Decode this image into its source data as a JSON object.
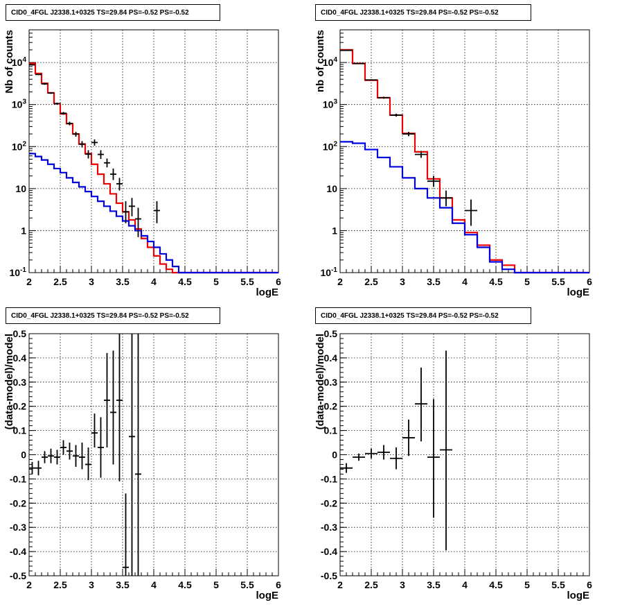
{
  "panels": [
    {
      "title": "CID0_4FGL J2338.1+0325 TS=29.84 PS=-0.52 PS=-0.52"
    },
    {
      "title": "CID0_4FGL J2338.1+0325 TS=29.84 PS=-0.52 PS=-0.52"
    },
    {
      "title": "CID0_4FGL J2338.1+0325 TS=29.84 PS=-0.52 PS=-0.52"
    },
    {
      "title": "CID0_4FGL J2338.1+0325 TS=29.84 PS=-0.52 PS=-0.52"
    }
  ],
  "colors": {
    "total_model": "#ee0000",
    "background_model": "#0000dd",
    "data": "#000000"
  },
  "chart_data": [
    {
      "type": "line",
      "title": "CID0_4FGL J2338.1+0325 TS=29.84 PS=-0.52 PS=-0.52",
      "xlabel": "logE",
      "ylabel": "Nb of counts",
      "xlim": [
        2,
        6
      ],
      "ylim": [
        0.1,
        60000
      ],
      "yscale": "log",
      "grid": true,
      "x_ticks": [
        "2",
        "2.5",
        "3",
        "3.5",
        "4",
        "4.5",
        "5",
        "5.5",
        "6"
      ],
      "y_ticks": [
        "10^-1",
        "1",
        "10",
        "10^2",
        "10^3",
        "10^4"
      ],
      "bin_edges": [
        2.0,
        2.1,
        2.2,
        2.3,
        2.4,
        2.5,
        2.6,
        2.7,
        2.8,
        2.9,
        3.0,
        3.1,
        3.2,
        3.3,
        3.4,
        3.5,
        3.6,
        3.7,
        3.8,
        3.9,
        4.0,
        4.1,
        4.2,
        4.3,
        4.4,
        4.5,
        4.6,
        4.7,
        4.8,
        4.9,
        5.0,
        5.1,
        5.2,
        5.3,
        5.4,
        5.5,
        5.6,
        5.7,
        5.8,
        5.9,
        6.0
      ],
      "series": [
        {
          "role": "total_model",
          "values": [
            9500,
            5500,
            3200,
            1900,
            1050,
            600,
            350,
            200,
            115,
            68,
            38,
            22,
            13,
            7.5,
            4.5,
            2.8,
            1.8,
            1.1,
            0.65,
            0.4,
            0.25,
            0.16,
            0.12,
            0.1,
            0.1,
            0.1,
            0.1,
            0.1,
            0.1,
            0.1,
            0.1,
            0.1,
            0.1,
            0.1,
            0.1,
            0.1,
            0.1,
            0.1,
            0.1,
            0.1
          ]
        },
        {
          "role": "background_model",
          "values": [
            68,
            58,
            48,
            38,
            30,
            24,
            18,
            14,
            11,
            8.5,
            6.5,
            5,
            3.8,
            2.9,
            2.2,
            1.7,
            1.3,
            1.0,
            0.75,
            0.55,
            0.4,
            0.28,
            0.2,
            0.14,
            0.1,
            0.1,
            0.1,
            0.1,
            0.1,
            0.1,
            0.1,
            0.1,
            0.1,
            0.1,
            0.1,
            0.1,
            0.1,
            0.1,
            0.1,
            0.1
          ]
        },
        {
          "role": "data",
          "points": [
            {
              "x": 2.05,
              "y": 8800,
              "ylo": 8500,
              "yhi": 9100
            },
            {
              "x": 2.15,
              "y": 5200,
              "ylo": 5000,
              "yhi": 5400
            },
            {
              "x": 2.25,
              "y": 3100,
              "ylo": 2950,
              "yhi": 3250
            },
            {
              "x": 2.35,
              "y": 1880,
              "ylo": 1790,
              "yhi": 1970
            },
            {
              "x": 2.45,
              "y": 1050,
              "ylo": 990,
              "yhi": 1110
            },
            {
              "x": 2.55,
              "y": 620,
              "ylo": 575,
              "yhi": 665
            },
            {
              "x": 2.65,
              "y": 355,
              "ylo": 320,
              "yhi": 390
            },
            {
              "x": 2.75,
              "y": 198,
              "ylo": 172,
              "yhi": 224
            },
            {
              "x": 2.85,
              "y": 114,
              "ylo": 95,
              "yhi": 135
            },
            {
              "x": 2.95,
              "y": 66,
              "ylo": 52,
              "yhi": 82
            },
            {
              "x": 3.05,
              "y": 125,
              "ylo": 105,
              "yhi": 148
            },
            {
              "x": 3.15,
              "y": 65,
              "ylo": 51,
              "yhi": 82
            },
            {
              "x": 3.25,
              "y": 41,
              "ylo": 32,
              "yhi": 52
            },
            {
              "x": 3.35,
              "y": 22,
              "ylo": 16,
              "yhi": 30
            },
            {
              "x": 3.45,
              "y": 13,
              "ylo": 9,
              "yhi": 18
            },
            {
              "x": 3.55,
              "y": 2.8,
              "ylo": 1.5,
              "yhi": 5
            },
            {
              "x": 3.65,
              "y": 3.8,
              "ylo": 2.2,
              "yhi": 6
            },
            {
              "x": 3.75,
              "y": 1.9,
              "ylo": 0.7,
              "yhi": 3.5
            },
            {
              "x": 4.05,
              "y": 3.0,
              "ylo": 1.5,
              "yhi": 5
            }
          ]
        }
      ]
    },
    {
      "type": "line",
      "title": "CID0_4FGL J2338.1+0325 TS=29.84 PS=-0.52 PS=-0.52",
      "xlabel": "logE",
      "ylabel": "nb of counts",
      "xlim": [
        2,
        6
      ],
      "ylim": [
        0.1,
        60000
      ],
      "yscale": "log",
      "grid": true,
      "x_ticks": [
        "2",
        "2.5",
        "3",
        "3.5",
        "4",
        "4.5",
        "5",
        "5.5",
        "6"
      ],
      "y_ticks": [
        "10^-1",
        "1",
        "10",
        "10^2",
        "10^3",
        "10^4"
      ],
      "bin_edges": [
        2.0,
        2.2,
        2.4,
        2.6,
        2.8,
        3.0,
        3.2,
        3.4,
        3.6,
        3.8,
        4.0,
        4.2,
        4.4,
        4.6,
        4.8,
        5.0,
        5.2,
        5.4,
        5.6,
        5.8,
        6.0
      ],
      "series": [
        {
          "role": "total_model",
          "values": [
            20000,
            9500,
            3800,
            1450,
            560,
            205,
            75,
            17,
            6,
            1.8,
            0.9,
            0.45,
            0.2,
            0.15,
            0.1,
            0.1,
            0.1,
            0.1,
            0.1,
            0.1
          ]
        },
        {
          "role": "background_model",
          "values": [
            130,
            120,
            85,
            55,
            33,
            18,
            10,
            6,
            3.5,
            1.5,
            0.8,
            0.4,
            0.18,
            0.12,
            0.1,
            0.1,
            0.1,
            0.1,
            0.1,
            0.1
          ]
        },
        {
          "role": "data",
          "points": [
            {
              "x": 2.1,
              "y": 19500,
              "ylo": 19100,
              "yhi": 19900
            },
            {
              "x": 2.3,
              "y": 9450,
              "ylo": 9200,
              "yhi": 9700
            },
            {
              "x": 2.5,
              "y": 3850,
              "ylo": 3700,
              "yhi": 4000
            },
            {
              "x": 2.7,
              "y": 1460,
              "ylo": 1380,
              "yhi": 1540
            },
            {
              "x": 2.9,
              "y": 560,
              "ylo": 515,
              "yhi": 605
            },
            {
              "x": 3.1,
              "y": 200,
              "ylo": 176,
              "yhi": 224
            },
            {
              "x": 3.3,
              "y": 65,
              "ylo": 54,
              "yhi": 78
            },
            {
              "x": 3.5,
              "y": 15,
              "ylo": 11,
              "yhi": 20
            },
            {
              "x": 3.7,
              "y": 6,
              "ylo": 3.8,
              "yhi": 9
            },
            {
              "x": 4.1,
              "y": 3,
              "ylo": 1.3,
              "yhi": 5.5
            }
          ]
        }
      ]
    },
    {
      "type": "scatter",
      "title": "CID0_4FGL J2338.1+0325 TS=29.84 PS=-0.52 PS=-0.52",
      "xlabel": "logE",
      "ylabel": "(data-model)/model",
      "xlim": [
        2,
        6
      ],
      "ylim": [
        -0.5,
        0.5
      ],
      "grid": true,
      "x_ticks": [
        "2",
        "2.5",
        "3",
        "3.5",
        "4",
        "4.5",
        "5",
        "5.5",
        "6"
      ],
      "y_ticks": [
        "-0.5",
        "-0.4",
        "-0.3",
        "-0.2",
        "-0.1",
        "0",
        "0.1",
        "0.2",
        "0.3",
        "0.4",
        "0.5"
      ],
      "points": [
        {
          "x": 2.05,
          "y": -0.055,
          "ylo": -0.08,
          "yhi": -0.03,
          "xerr": 0.05
        },
        {
          "x": 2.15,
          "y": -0.055,
          "ylo": -0.085,
          "yhi": -0.025,
          "xerr": 0.05
        },
        {
          "x": 2.25,
          "y": -0.01,
          "ylo": -0.035,
          "yhi": 0.015,
          "xerr": 0.05
        },
        {
          "x": 2.35,
          "y": -0.005,
          "ylo": -0.035,
          "yhi": 0.025,
          "xerr": 0.05
        },
        {
          "x": 2.45,
          "y": -0.01,
          "ylo": -0.04,
          "yhi": 0.02,
          "xerr": 0.05
        },
        {
          "x": 2.55,
          "y": 0.03,
          "ylo": 0.0,
          "yhi": 0.06,
          "xerr": 0.05
        },
        {
          "x": 2.65,
          "y": 0.015,
          "ylo": -0.02,
          "yhi": 0.05,
          "xerr": 0.05
        },
        {
          "x": 2.75,
          "y": -0.005,
          "ylo": -0.05,
          "yhi": 0.04,
          "xerr": 0.05
        },
        {
          "x": 2.85,
          "y": -0.01,
          "ylo": -0.06,
          "yhi": 0.05,
          "xerr": 0.05
        },
        {
          "x": 2.95,
          "y": -0.04,
          "ylo": -0.105,
          "yhi": 0.03,
          "xerr": 0.05
        },
        {
          "x": 3.05,
          "y": 0.09,
          "ylo": 0.03,
          "yhi": 0.17,
          "xerr": 0.05
        },
        {
          "x": 3.15,
          "y": 0.03,
          "ylo": -0.095,
          "yhi": 0.155,
          "xerr": 0.05
        },
        {
          "x": 3.25,
          "y": 0.225,
          "ylo": 0.03,
          "yhi": 0.42,
          "xerr": 0.05
        },
        {
          "x": 3.35,
          "y": 0.175,
          "ylo": -0.04,
          "yhi": 0.43,
          "xerr": 0.05
        },
        {
          "x": 3.45,
          "y": 0.225,
          "ylo": -0.11,
          "yhi": 0.5,
          "xerr": 0.05
        },
        {
          "x": 3.55,
          "y": -0.465,
          "ylo": -0.5,
          "yhi": -0.16,
          "xerr": 0.05
        },
        {
          "x": 3.65,
          "y": 0.075,
          "ylo": -0.5,
          "yhi": 0.5,
          "xerr": 0.05
        },
        {
          "x": 3.75,
          "y": -0.08,
          "ylo": -0.5,
          "yhi": 0.5,
          "xerr": 0.05
        }
      ]
    },
    {
      "type": "scatter",
      "title": "CID0_4FGL J2338.1+0325 TS=29.84 PS=-0.52 PS=-0.52",
      "xlabel": "logE",
      "ylabel": "(data-model)/model",
      "xlim": [
        2,
        6
      ],
      "ylim": [
        -0.5,
        0.5
      ],
      "grid": true,
      "x_ticks": [
        "2",
        "2.5",
        "3",
        "3.5",
        "4",
        "4.5",
        "5",
        "5.5",
        "6"
      ],
      "y_ticks": [
        "-0.5",
        "-0.4",
        "-0.3",
        "-0.2",
        "-0.1",
        "0",
        "0.1",
        "0.2",
        "0.3",
        "0.4",
        "0.5"
      ],
      "points": [
        {
          "x": 2.1,
          "y": -0.055,
          "ylo": -0.075,
          "yhi": -0.035,
          "xerr": 0.1
        },
        {
          "x": 2.3,
          "y": -0.01,
          "ylo": -0.025,
          "yhi": 0.005,
          "xerr": 0.1
        },
        {
          "x": 2.5,
          "y": 0.005,
          "ylo": -0.015,
          "yhi": 0.025,
          "xerr": 0.1
        },
        {
          "x": 2.7,
          "y": 0.01,
          "ylo": -0.02,
          "yhi": 0.04,
          "xerr": 0.1
        },
        {
          "x": 2.9,
          "y": -0.015,
          "ylo": -0.06,
          "yhi": 0.03,
          "xerr": 0.1
        },
        {
          "x": 3.1,
          "y": 0.07,
          "ylo": -0.005,
          "yhi": 0.145,
          "xerr": 0.1
        },
        {
          "x": 3.3,
          "y": 0.21,
          "ylo": 0.055,
          "yhi": 0.36,
          "xerr": 0.1
        },
        {
          "x": 3.5,
          "y": -0.01,
          "ylo": -0.26,
          "yhi": 0.23,
          "xerr": 0.1
        },
        {
          "x": 3.7,
          "y": 0.02,
          "ylo": -0.395,
          "yhi": 0.43,
          "xerr": 0.1
        }
      ]
    }
  ]
}
